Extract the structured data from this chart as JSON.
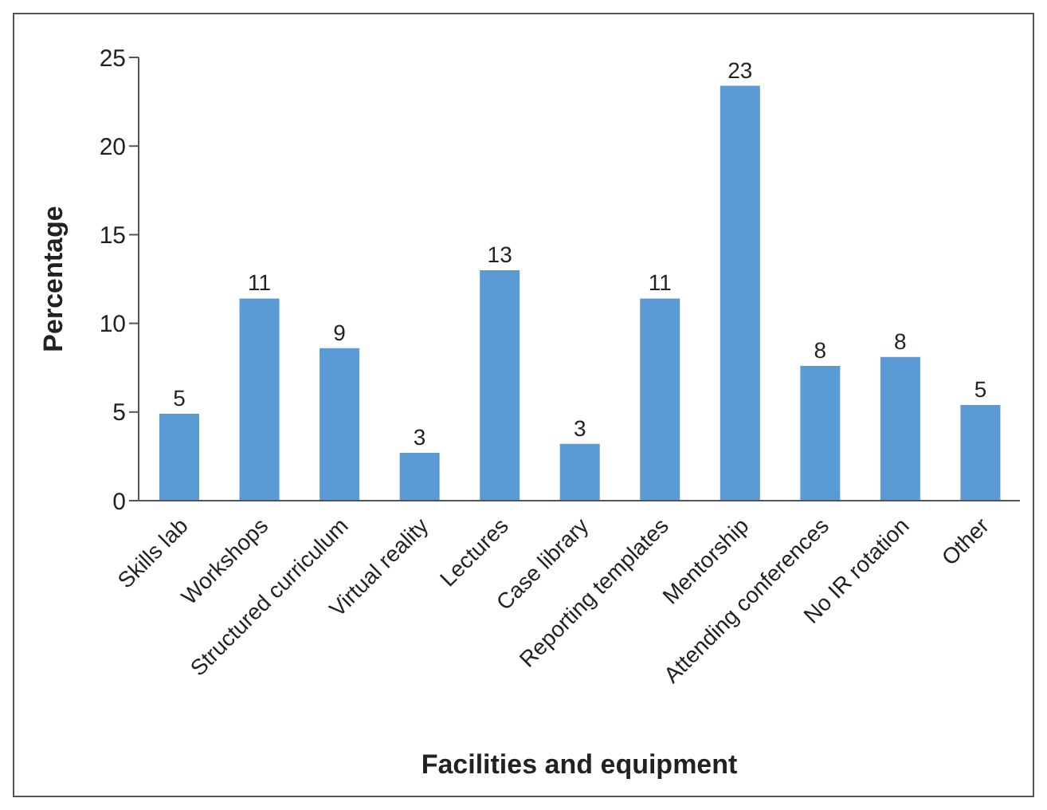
{
  "chart_data": {
    "type": "bar",
    "xlabel": "Facilities and equipment",
    "ylabel": "Percentage",
    "categories": [
      "Skills lab",
      "Workshops",
      "Structured curriculum",
      "Virtual reality",
      "Lectures",
      "Case library",
      "Reporting templates",
      "Mentorship",
      "Attending conferences",
      "No IR rotation",
      "Other"
    ],
    "values": [
      4.9,
      11.4,
      8.6,
      2.7,
      13.0,
      3.2,
      11.4,
      23.4,
      7.6,
      8.1,
      5.4
    ],
    "value_labels": [
      "5",
      "11",
      "9",
      "3",
      "13",
      "3",
      "11",
      "23",
      "8",
      "8",
      "5"
    ],
    "color": "#5b9bd5",
    "ylim": [
      0,
      25
    ],
    "yticks": [
      0,
      5,
      10,
      15,
      20,
      25
    ],
    "grid": false,
    "legend": false
  }
}
